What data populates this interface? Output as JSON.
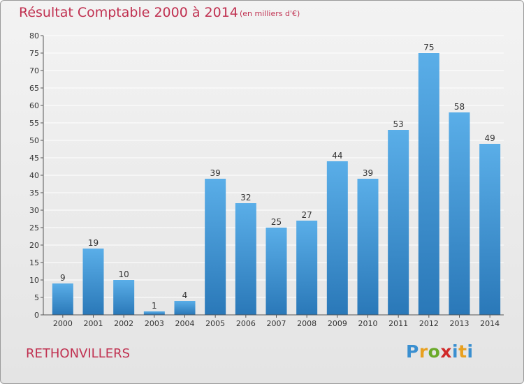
{
  "header": {
    "title": "Résultat Comptable 2000 à 2014",
    "subtitle": "(en milliers d'€)"
  },
  "footer": {
    "commune": "RETHONVILLERS",
    "logo": "Proxiti"
  },
  "colors": {
    "title": "#c03050",
    "bar_light": "#5aaee8",
    "bar_dark": "#2a78b8",
    "grid": "#ffffff",
    "axis": "#555555"
  },
  "chart_data": {
    "type": "bar",
    "title": "Résultat Comptable 2000 à 2014",
    "subtitle": "(en milliers d'€)",
    "categories": [
      "2000",
      "2001",
      "2002",
      "2003",
      "2004",
      "2005",
      "2006",
      "2007",
      "2008",
      "2009",
      "2010",
      "2011",
      "2012",
      "2013",
      "2014"
    ],
    "values": [
      9,
      19,
      10,
      1,
      4,
      39,
      32,
      25,
      27,
      44,
      39,
      53,
      75,
      58,
      49
    ],
    "ylim": [
      0,
      80
    ],
    "yticks": [
      0,
      5,
      10,
      15,
      20,
      25,
      30,
      35,
      40,
      45,
      50,
      55,
      60,
      65,
      70,
      75,
      80
    ],
    "grid": true,
    "xlabel": "",
    "ylabel": ""
  }
}
